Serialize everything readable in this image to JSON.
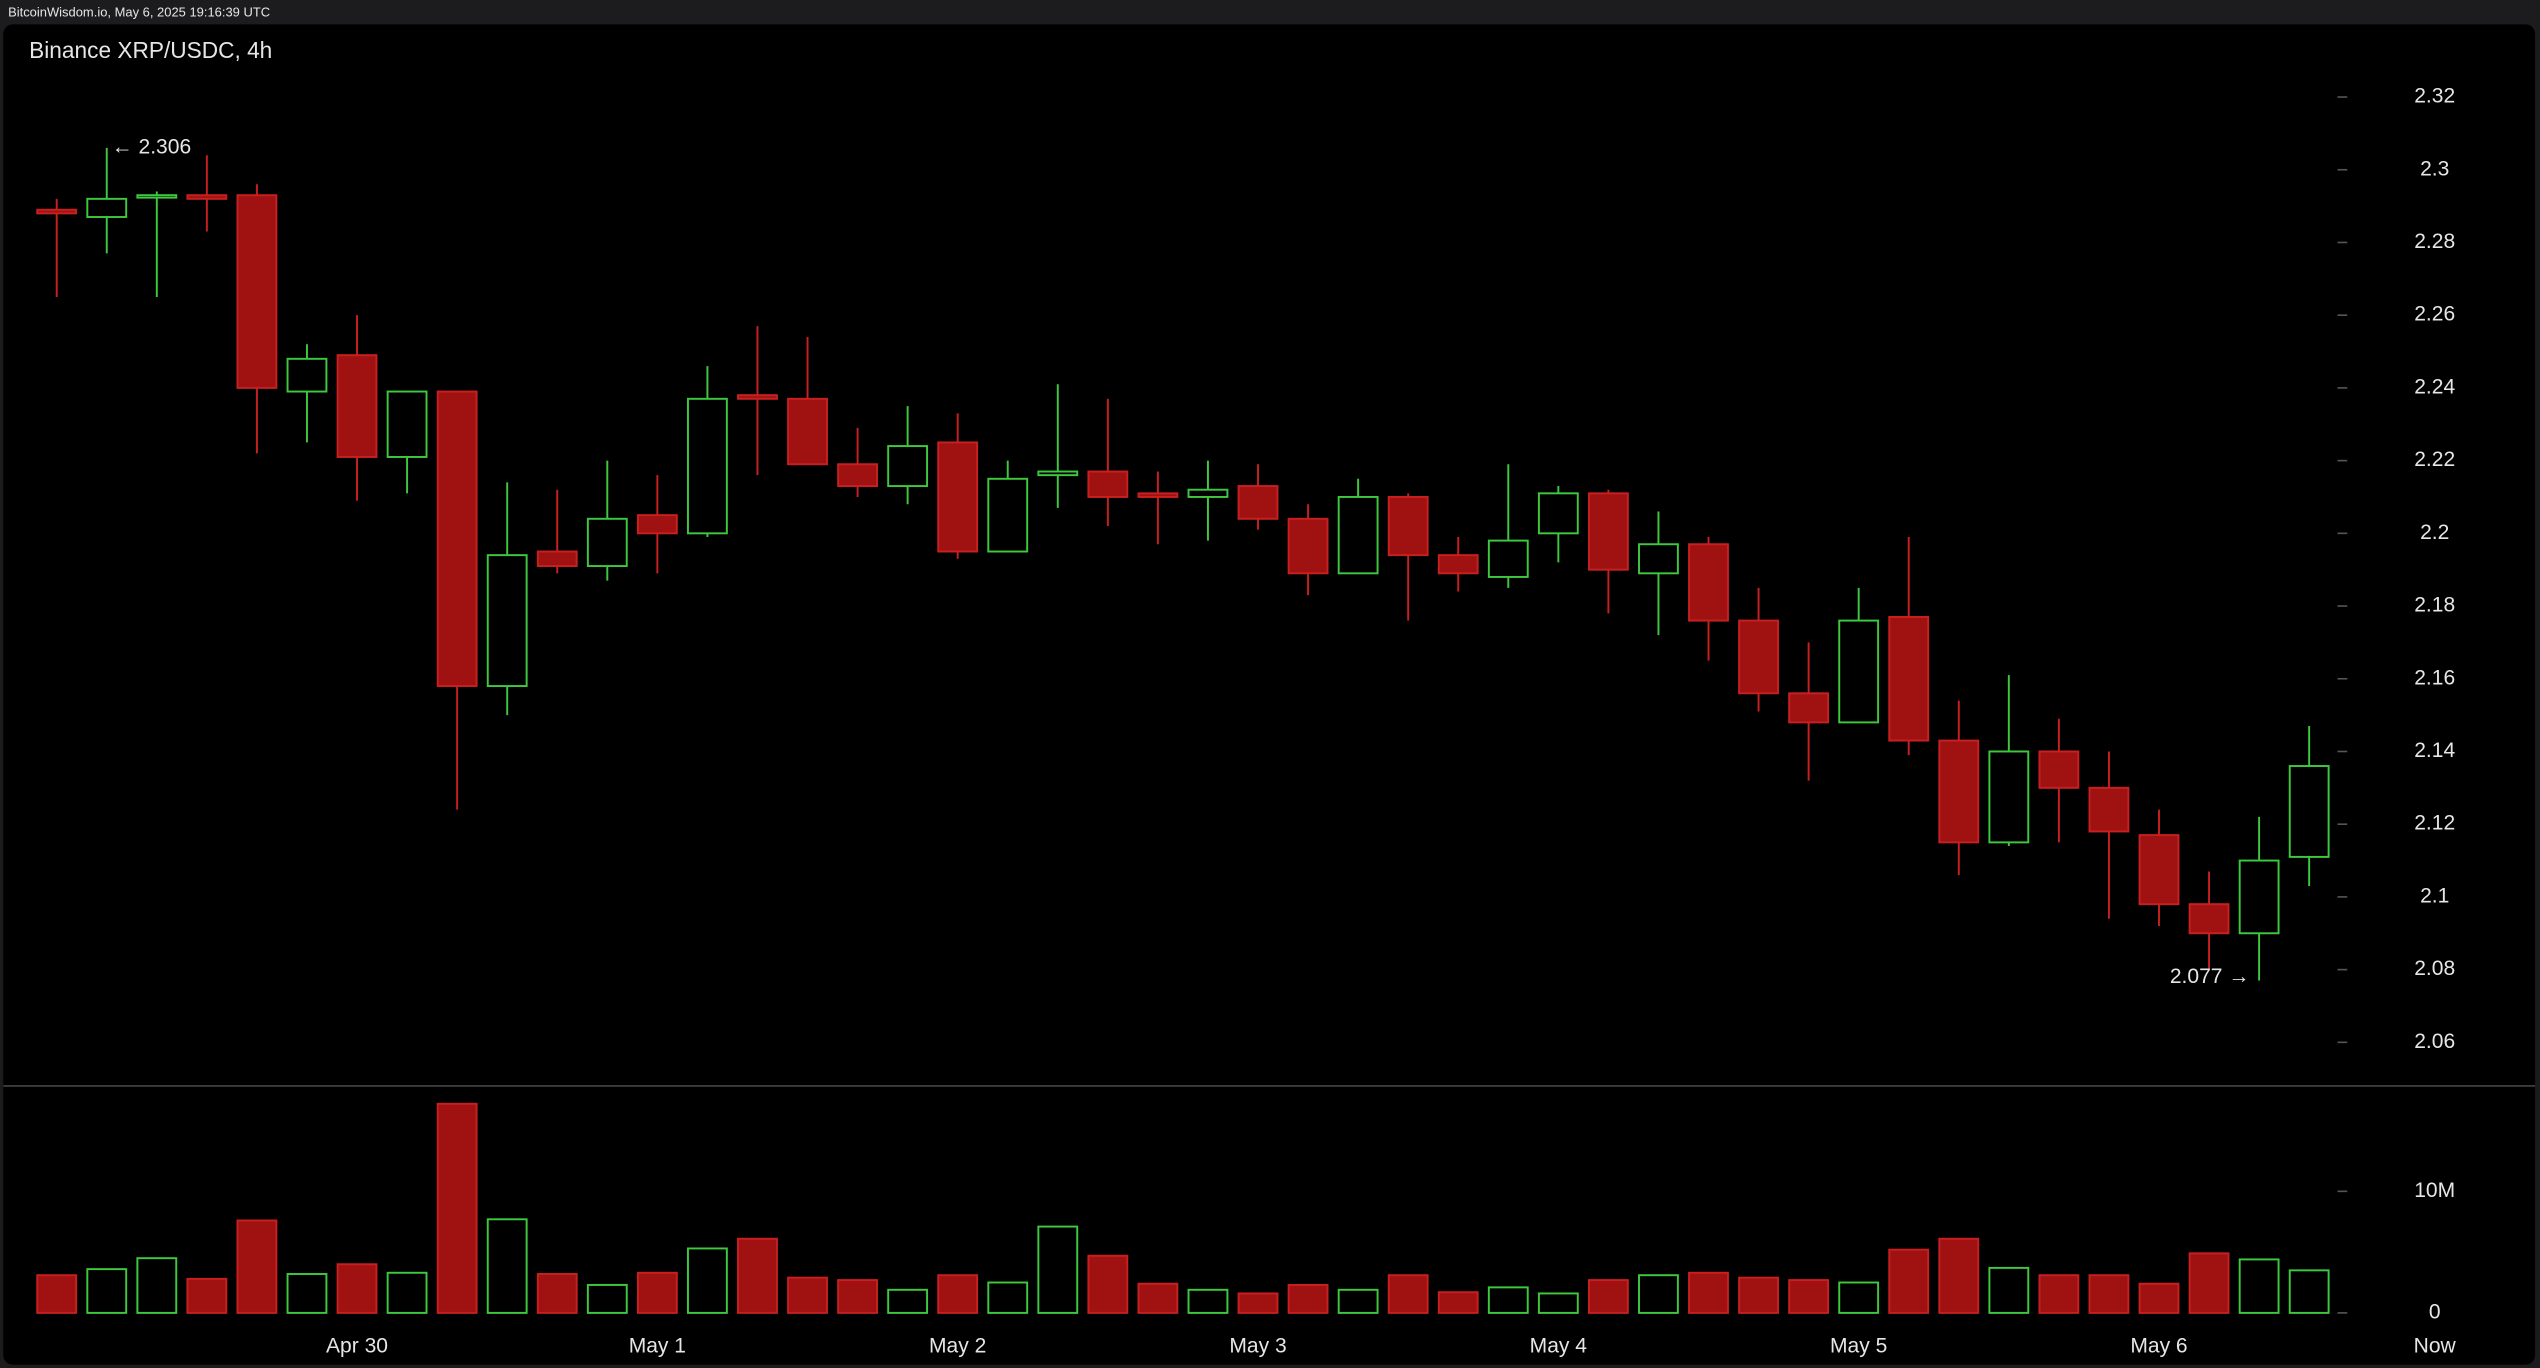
{
  "header": "BitcoinWisdom.io, May 6, 2025 19:16:39 UTC",
  "chart_data": {
    "type": "candlestick",
    "title": "Binance XRP/USDC, 4h",
    "categories": [
      null,
      null,
      null,
      null,
      null,
      null,
      "Apr 30",
      null,
      null,
      null,
      null,
      null,
      "May 1",
      null,
      null,
      null,
      null,
      null,
      "May 2",
      null,
      null,
      null,
      null,
      null,
      "May 3",
      null,
      null,
      null,
      null,
      null,
      "May 4",
      null,
      null,
      null,
      null,
      null,
      "May 5",
      null,
      null,
      null,
      null,
      null,
      "May 6",
      null,
      null,
      null
    ],
    "now_label": "Now",
    "open": [
      2.289,
      2.287,
      2.293,
      2.293,
      2.293,
      2.239,
      2.249,
      2.221,
      2.239,
      2.158,
      2.195,
      2.191,
      2.205,
      2.2,
      2.238,
      2.237,
      2.219,
      2.213,
      2.225,
      2.195,
      2.216,
      2.217,
      2.211,
      2.21,
      2.213,
      2.204,
      2.189,
      2.21,
      2.194,
      2.188,
      2.2,
      2.211,
      2.189,
      2.197,
      2.176,
      2.156,
      2.148,
      2.177,
      2.143,
      2.115,
      2.14,
      2.13,
      2.117,
      2.098,
      2.09,
      2.111
    ],
    "high": [
      2.292,
      2.306,
      2.294,
      2.304,
      2.296,
      2.252,
      2.26,
      2.239,
      2.239,
      2.214,
      2.212,
      2.22,
      2.216,
      2.246,
      2.257,
      2.254,
      2.229,
      2.235,
      2.233,
      2.22,
      2.241,
      2.237,
      2.217,
      2.22,
      2.219,
      2.208,
      2.215,
      2.211,
      2.199,
      2.219,
      2.213,
      2.212,
      2.206,
      2.199,
      2.185,
      2.17,
      2.185,
      2.199,
      2.154,
      2.161,
      2.149,
      2.14,
      2.124,
      2.107,
      2.122,
      2.147
    ],
    "low": [
      2.265,
      2.277,
      2.265,
      2.283,
      2.222,
      2.225,
      2.209,
      2.211,
      2.124,
      2.15,
      2.189,
      2.187,
      2.189,
      2.199,
      2.216,
      2.219,
      2.21,
      2.208,
      2.193,
      2.195,
      2.207,
      2.202,
      2.197,
      2.198,
      2.201,
      2.183,
      2.189,
      2.176,
      2.184,
      2.185,
      2.192,
      2.178,
      2.172,
      2.165,
      2.151,
      2.132,
      2.148,
      2.139,
      2.106,
      2.114,
      2.115,
      2.094,
      2.092,
      2.08,
      2.077,
      2.103
    ],
    "close": [
      2.288,
      2.292,
      2.293,
      2.292,
      2.24,
      2.248,
      2.221,
      2.239,
      2.158,
      2.194,
      2.191,
      2.204,
      2.2,
      2.237,
      2.237,
      2.219,
      2.213,
      2.224,
      2.195,
      2.215,
      2.217,
      2.21,
      2.21,
      2.212,
      2.204,
      2.189,
      2.21,
      2.194,
      2.189,
      2.198,
      2.211,
      2.19,
      2.197,
      2.176,
      2.156,
      2.148,
      2.176,
      2.143,
      2.115,
      2.14,
      2.13,
      2.118,
      2.098,
      2.09,
      2.11,
      2.136
    ],
    "volume": [
      3.1,
      3.6,
      4.5,
      2.8,
      7.6,
      3.2,
      4.0,
      3.3,
      17.2,
      7.7,
      3.2,
      2.3,
      3.3,
      5.3,
      6.1,
      2.9,
      2.7,
      1.9,
      3.1,
      2.5,
      7.1,
      4.7,
      2.4,
      1.9,
      1.6,
      2.3,
      1.9,
      3.1,
      1.7,
      2.1,
      1.6,
      2.7,
      3.1,
      3.3,
      2.9,
      2.7,
      2.5,
      5.2,
      6.1,
      3.7,
      3.1,
      3.1,
      2.4,
      4.9,
      4.4,
      3.5
    ],
    "ylim": [
      2.048,
      2.34
    ],
    "yticks": [
      2.06,
      2.08,
      2.1,
      2.12,
      2.14,
      2.16,
      2.18,
      2.2,
      2.22,
      2.24,
      2.26,
      2.28,
      2.3,
      2.32
    ],
    "volume_ylim": [
      0,
      18.4
    ],
    "volume_yticks": [
      0,
      {
        "value": 10,
        "label": "10M"
      }
    ],
    "annotations": [
      "← 2.306",
      "2.077 →"
    ],
    "up_color": "#3ec83e",
    "down_color": "#a01212",
    "down_wick_color": "#c82020"
  }
}
